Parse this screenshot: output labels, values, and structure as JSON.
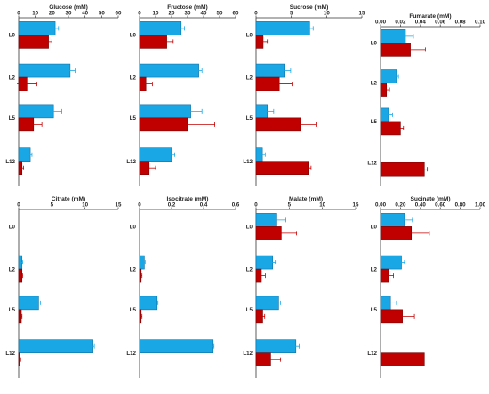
{
  "colors": {
    "blue": "#1aa7e6",
    "red": "#c00000"
  },
  "chart_data": [
    {
      "type": "bar",
      "orientation": "horizontal",
      "title": "Glucose (mM)",
      "categories": [
        "L0",
        "L2",
        "L5",
        "L12"
      ],
      "xlim": [
        0,
        60
      ],
      "ticks": [
        "0",
        "10",
        "20",
        "30",
        "40",
        "50",
        "60"
      ],
      "series": [
        {
          "color": "blue",
          "values": [
            22,
            31,
            21,
            7
          ],
          "errors": [
            2,
            3,
            5,
            1
          ]
        },
        {
          "color": "red",
          "values": [
            18,
            5,
            9,
            2
          ],
          "errors": [
            2,
            6,
            5,
            1
          ]
        }
      ]
    },
    {
      "type": "bar",
      "orientation": "horizontal",
      "title": "Fructose (mM)",
      "categories": [
        "L0",
        "L2",
        "L5",
        "L12"
      ],
      "xlim": [
        0,
        60
      ],
      "ticks": [
        "0",
        "10",
        "20",
        "30",
        "40",
        "50",
        "60"
      ],
      "series": [
        {
          "color": "blue",
          "values": [
            26,
            37,
            32,
            20
          ],
          "errors": [
            2,
            2,
            7,
            2
          ]
        },
        {
          "color": "red",
          "values": [
            17,
            4,
            30,
            6
          ],
          "errors": [
            4,
            4,
            17,
            4
          ]
        }
      ]
    },
    {
      "type": "bar",
      "orientation": "horizontal",
      "title": "Sucrose (mM)",
      "categories": [
        "L0",
        "L2",
        "L5",
        "L12"
      ],
      "xlim": [
        0,
        15
      ],
      "ticks": [
        "0",
        "5",
        "10",
        "15"
      ],
      "series": [
        {
          "color": "blue",
          "values": [
            7.6,
            4.0,
            1.6,
            0.9
          ],
          "errors": [
            0.5,
            0.9,
            0.9,
            0.4
          ]
        },
        {
          "color": "red",
          "values": [
            1.0,
            3.3,
            6.3,
            7.4
          ],
          "errors": [
            0.6,
            1.8,
            2.2,
            0.4
          ]
        }
      ]
    },
    {
      "type": "bar",
      "orientation": "horizontal",
      "title": "Fumarate (mM)",
      "categories": [
        "L0",
        "L2",
        "L5",
        "L12"
      ],
      "xlim": [
        0,
        0.1
      ],
      "ticks": [
        "0.00",
        "0.02",
        "0.04",
        "0.06",
        "0.08",
        "0.10"
      ],
      "series": [
        {
          "color": "blue",
          "values": [
            0.025,
            0.016,
            0.008,
            0.0
          ],
          "errors": [
            0.008,
            0.002,
            0.004,
            0
          ]
        },
        {
          "color": "red",
          "values": [
            0.03,
            0.006,
            0.02,
            0.044
          ],
          "errors": [
            0.015,
            0.003,
            0.003,
            0.003
          ]
        }
      ]
    },
    {
      "type": "bar",
      "orientation": "horizontal",
      "title": "Citrate (mM)",
      "categories": [
        "L0",
        "L2",
        "L5",
        "L12"
      ],
      "xlim": [
        0,
        15
      ],
      "ticks": [
        "0",
        "5",
        "10",
        "15"
      ],
      "series": [
        {
          "color": "blue",
          "values": [
            0,
            0.5,
            3.0,
            11.2
          ],
          "errors": [
            0,
            0.1,
            0.3,
            0.2
          ]
        },
        {
          "color": "red",
          "values": [
            0,
            0.5,
            0.4,
            0.2
          ],
          "errors": [
            0,
            0.1,
            0.1,
            0.1
          ]
        }
      ]
    },
    {
      "type": "bar",
      "orientation": "horizontal",
      "title": "Isocitrate (mM)",
      "categories": [
        "L0",
        "L2",
        "L5",
        "L12"
      ],
      "xlim": [
        0,
        0.6
      ],
      "ticks": [
        "0",
        "0.2",
        "0.4",
        "0.6"
      ],
      "series": [
        {
          "color": "blue",
          "values": [
            0,
            0.03,
            0.11,
            0.46
          ],
          "errors": [
            0,
            0.005,
            0.005,
            0.005
          ]
        },
        {
          "color": "red",
          "values": [
            0,
            0.01,
            0.01,
            0.0
          ],
          "errors": [
            0,
            0.005,
            0.005,
            0
          ]
        }
      ]
    },
    {
      "type": "bar",
      "orientation": "horizontal",
      "title": "Malate (mM)",
      "categories": [
        "L0",
        "L2",
        "L5",
        "L12"
      ],
      "xlim": [
        0,
        15
      ],
      "ticks": [
        "0",
        "5",
        "10",
        "15"
      ],
      "series": [
        {
          "color": "blue",
          "values": [
            3.0,
            2.5,
            3.4,
            6.0
          ],
          "errors": [
            1.5,
            0.4,
            0.3,
            0.5
          ]
        },
        {
          "color": "red",
          "values": [
            3.8,
            0.8,
            1.0,
            2.2
          ],
          "errors": [
            2.3,
            0.6,
            0.3,
            1.5
          ]
        }
      ]
    },
    {
      "type": "bar",
      "orientation": "horizontal",
      "title": "Sucinate (mM)",
      "categories": [
        "L0",
        "L2",
        "L5",
        "L12"
      ],
      "xlim": [
        0,
        1.0
      ],
      "ticks": [
        "0.00",
        "0.20",
        "0.40",
        "0.60",
        "0.80",
        "1.00"
      ],
      "series": [
        {
          "color": "blue",
          "values": [
            0.24,
            0.21,
            0.1,
            0.0
          ],
          "errors": [
            0.08,
            0.03,
            0.06,
            0
          ]
        },
        {
          "color": "red",
          "values": [
            0.31,
            0.08,
            0.22,
            0.44
          ],
          "errors": [
            0.18,
            0.05,
            0.12,
            0.0
          ]
        }
      ]
    }
  ]
}
